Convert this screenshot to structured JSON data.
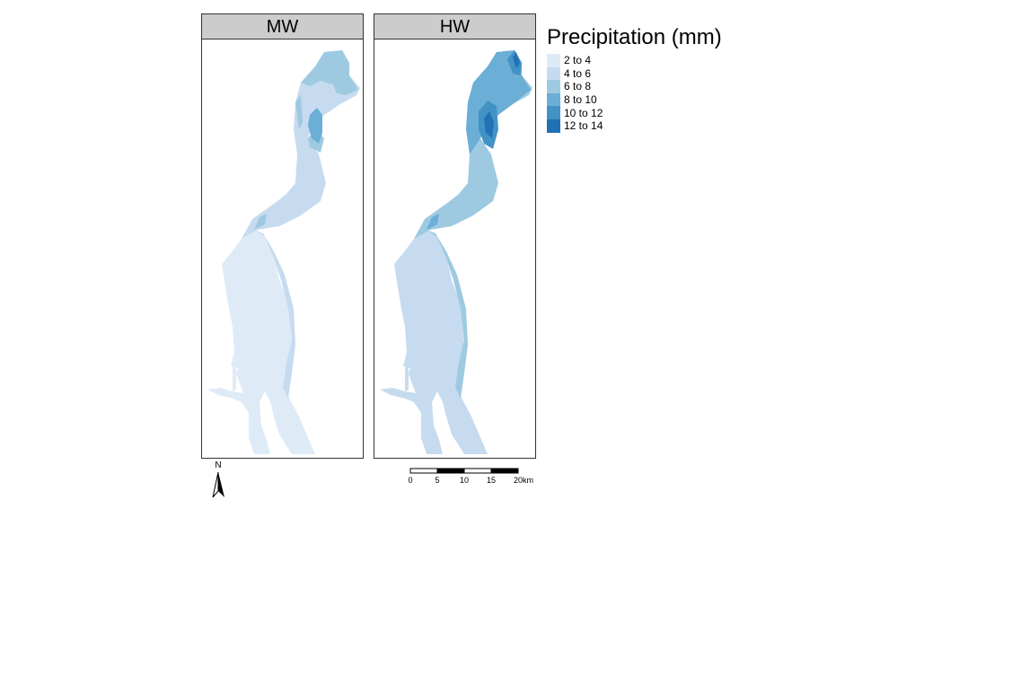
{
  "panels": [
    {
      "id": "mw",
      "title": "MW",
      "fills": {
        "base": "#c6dbef",
        "south": "#deebf7",
        "mid": "#9ecae1",
        "core": "#6baed6",
        "peak": "#6baed6"
      }
    },
    {
      "id": "hw",
      "title": "HW",
      "fills": {
        "base": "#9ecae1",
        "south": "#c6dbef",
        "mid": "#6baed6",
        "core": "#4292c6",
        "peak": "#2171b5"
      }
    }
  ],
  "legend": {
    "title": "Precipitation (mm)",
    "items": [
      {
        "label": "2 to 4",
        "color": "#deebf7"
      },
      {
        "label": "4 to 6",
        "color": "#c6dbef"
      },
      {
        "label": "6 to 8",
        "color": "#9ecae1"
      },
      {
        "label": "8 to 10",
        "color": "#6baed6"
      },
      {
        "label": "10 to 12",
        "color": "#4292c6"
      },
      {
        "label": "12 to 14",
        "color": "#2171b5"
      }
    ]
  },
  "north_arrow": {
    "label": "N",
    "icon": "north-arrow-icon"
  },
  "scale_bar": {
    "ticks": [
      "0",
      "5",
      "10",
      "15",
      "20km"
    ]
  }
}
